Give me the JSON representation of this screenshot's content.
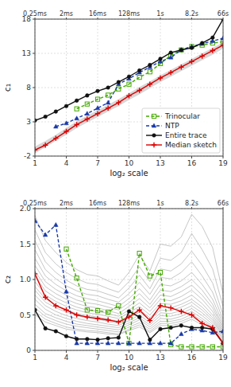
{
  "chart_data": [
    {
      "type": "line",
      "xlabel": "log₂ scale",
      "ylabel": "c₁",
      "x": [
        1,
        2,
        3,
        4,
        5,
        6,
        7,
        8,
        9,
        10,
        11,
        12,
        13,
        14,
        15,
        16,
        17,
        18,
        19
      ],
      "xlim": [
        1,
        19
      ],
      "xticks": [
        1,
        4,
        7,
        10,
        13,
        16,
        19
      ],
      "x2lim": [
        1,
        19
      ],
      "x2ticks": [
        {
          "value": 1,
          "label": "0.25ms"
        },
        {
          "value": 4,
          "label": "2ms"
        },
        {
          "value": 7,
          "label": "16ms"
        },
        {
          "value": 10,
          "label": "128ms"
        },
        {
          "value": 13,
          "label": "1s"
        },
        {
          "value": 16,
          "label": "8.2s"
        },
        {
          "value": 19,
          "label": "66s"
        }
      ],
      "ylim": [
        -2,
        18
      ],
      "yticks": [
        -2,
        3,
        8,
        13,
        18
      ],
      "grid": true,
      "legend": "lower right",
      "series": [
        {
          "type": "area",
          "color": "#d0d0d0",
          "values": [
            -0.6,
            0.2,
            1.1,
            2.1,
            3.1,
            3.9,
            4.7,
            5.5,
            6.3,
            7.2,
            8.1,
            8.9,
            9.8,
            10.6,
            11.4,
            12.2,
            13.0,
            13.8,
            14.6
          ],
          "lower": [
            -1.6,
            -0.7,
            0.2,
            1.1,
            2.1,
            2.9,
            3.7,
            4.5,
            5.3,
            6.2,
            7.0,
            7.9,
            8.8,
            9.6,
            10.4,
            11.2,
            12.0,
            12.8,
            13.7
          ]
        },
        {
          "name": "Trinocular",
          "color": "#44aa00",
          "line_style": "dashed",
          "marker": "open-square",
          "values": [
            null,
            null,
            null,
            null,
            4.9,
            5.6,
            6.3,
            6.9,
            7.8,
            8.5,
            9.5,
            10.3,
            11.5,
            12.7,
            13.5,
            14.0,
            14.2,
            14.5,
            14.7
          ]
        },
        {
          "name": "NTP",
          "color": "#1a3aaa",
          "line_style": "dashed",
          "marker": "triangle",
          "values": [
            null,
            null,
            2.3,
            2.8,
            3.5,
            4.2,
            5.0,
            5.8,
            8.5,
            9.3,
            10.2,
            11.0,
            11.8,
            12.4,
            13.5,
            14.0,
            14.4,
            14.8,
            15.2
          ]
        },
        {
          "name": "Entire trace",
          "color": "#111111",
          "line_style": "solid",
          "marker": "circle",
          "values": [
            3.2,
            3.75,
            4.5,
            5.3,
            6.1,
            6.85,
            7.5,
            8.0,
            8.8,
            9.6,
            10.5,
            11.3,
            12.2,
            13.1,
            13.5,
            13.8,
            14.5,
            15.3,
            18.0
          ]
        },
        {
          "name": "Median sketch",
          "color": "#dd0000",
          "line_style": "solid",
          "marker": "plus",
          "values": [
            -1.1,
            -0.4,
            0.6,
            1.6,
            2.6,
            3.4,
            4.2,
            5.0,
            5.8,
            6.8,
            7.6,
            8.5,
            9.4,
            10.2,
            11.0,
            11.8,
            12.6,
            13.4,
            14.2
          ]
        }
      ]
    },
    {
      "type": "line",
      "xlabel": "log₂ scale",
      "ylabel": "c₂",
      "x": [
        1,
        2,
        3,
        4,
        5,
        6,
        7,
        8,
        9,
        10,
        11,
        12,
        13,
        14,
        15,
        16,
        17,
        18,
        19
      ],
      "xlim": [
        1,
        19
      ],
      "xticks": [
        1,
        4,
        7,
        10,
        13,
        16,
        19
      ],
      "x2lim": [
        1,
        19
      ],
      "x2ticks": [
        {
          "value": 1,
          "label": "0.25ms"
        },
        {
          "value": 4,
          "label": "2ms"
        },
        {
          "value": 7,
          "label": "16ms"
        },
        {
          "value": 10,
          "label": "128ms"
        },
        {
          "value": 13,
          "label": "1s"
        },
        {
          "value": 16,
          "label": "8.2s"
        },
        {
          "value": 19,
          "label": "66s"
        }
      ],
      "ylim": [
        0,
        2
      ],
      "yticks": [
        0,
        0.5,
        {
          "value": 1.0,
          "label": "1.0"
        },
        1.5,
        {
          "value": 2.0,
          "label": "2.0"
        }
      ],
      "grid": true,
      "series": [
        {
          "color": "#b8b8b8",
          "line_style": "solid",
          "values": [
            0.5,
            0.4,
            0.35,
            0.3,
            0.28,
            0.26,
            0.25,
            0.23,
            0.22,
            0.28,
            0.33,
            0.25,
            0.35,
            0.35,
            0.38,
            0.44,
            0.36,
            0.27,
            0.13
          ]
        },
        {
          "color": "#b8b8b8",
          "line_style": "solid",
          "values": [
            0.55,
            0.44,
            0.38,
            0.33,
            0.3,
            0.28,
            0.27,
            0.25,
            0.23,
            0.3,
            0.36,
            0.27,
            0.38,
            0.38,
            0.41,
            0.47,
            0.39,
            0.29,
            0.14
          ]
        },
        {
          "color": "#b8b8b8",
          "line_style": "solid",
          "values": [
            0.6,
            0.48,
            0.42,
            0.37,
            0.34,
            0.32,
            0.3,
            0.28,
            0.26,
            0.33,
            0.39,
            0.3,
            0.41,
            0.41,
            0.44,
            0.51,
            0.42,
            0.32,
            0.16
          ]
        },
        {
          "color": "#b8b8b8",
          "line_style": "solid",
          "values": [
            0.65,
            0.52,
            0.46,
            0.41,
            0.37,
            0.35,
            0.33,
            0.31,
            0.29,
            0.36,
            0.43,
            0.33,
            0.45,
            0.44,
            0.48,
            0.55,
            0.45,
            0.34,
            0.17
          ]
        },
        {
          "color": "#b8b8b8",
          "line_style": "solid",
          "values": [
            0.72,
            0.58,
            0.5,
            0.45,
            0.41,
            0.38,
            0.36,
            0.34,
            0.32,
            0.39,
            0.46,
            0.36,
            0.49,
            0.48,
            0.52,
            0.59,
            0.49,
            0.37,
            0.19
          ]
        },
        {
          "color": "#b8b8b8",
          "line_style": "solid",
          "values": [
            0.78,
            0.63,
            0.55,
            0.49,
            0.45,
            0.42,
            0.4,
            0.37,
            0.35,
            0.42,
            0.5,
            0.39,
            0.53,
            0.52,
            0.56,
            0.63,
            0.53,
            0.4,
            0.21
          ]
        },
        {
          "color": "#b8b8b8",
          "line_style": "solid",
          "values": [
            0.85,
            0.68,
            0.6,
            0.54,
            0.49,
            0.46,
            0.44,
            0.41,
            0.38,
            0.46,
            0.54,
            0.43,
            0.57,
            0.56,
            0.61,
            0.68,
            0.57,
            0.43,
            0.22
          ]
        },
        {
          "color": "#b8b8b8",
          "line_style": "solid",
          "values": [
            0.9,
            0.73,
            0.64,
            0.57,
            0.52,
            0.49,
            0.47,
            0.44,
            0.41,
            0.49,
            0.57,
            0.46,
            0.61,
            0.6,
            0.65,
            0.72,
            0.61,
            0.46,
            0.24
          ]
        },
        {
          "color": "#b8b8b8",
          "line_style": "solid",
          "values": [
            0.97,
            0.78,
            0.69,
            0.62,
            0.57,
            0.53,
            0.51,
            0.48,
            0.45,
            0.53,
            0.62,
            0.5,
            0.66,
            0.65,
            0.7,
            0.78,
            0.66,
            0.5,
            0.26
          ]
        },
        {
          "color": "#b8b8b8",
          "line_style": "solid",
          "values": [
            1.05,
            0.84,
            0.74,
            0.67,
            0.61,
            0.57,
            0.55,
            0.52,
            0.48,
            0.57,
            0.67,
            0.55,
            0.72,
            0.7,
            0.76,
            0.85,
            0.72,
            0.55,
            0.28
          ]
        },
        {
          "color": "#b8b8b8",
          "line_style": "solid",
          "values": [
            1.12,
            0.9,
            0.8,
            0.72,
            0.66,
            0.62,
            0.6,
            0.56,
            0.52,
            0.62,
            0.73,
            0.6,
            0.78,
            0.76,
            0.83,
            0.92,
            0.78,
            0.6,
            0.31
          ]
        },
        {
          "color": "#b8b8b8",
          "line_style": "solid",
          "values": [
            1.2,
            0.97,
            0.86,
            0.78,
            0.71,
            0.67,
            0.65,
            0.61,
            0.57,
            0.67,
            0.8,
            0.65,
            0.85,
            0.83,
            0.9,
            1.0,
            0.85,
            0.65,
            0.34
          ]
        },
        {
          "color": "#b8b8b8",
          "line_style": "solid",
          "values": [
            1.3,
            1.05,
            0.93,
            0.84,
            0.77,
            0.73,
            0.7,
            0.66,
            0.62,
            0.73,
            0.87,
            0.71,
            0.93,
            0.91,
            0.98,
            1.1,
            0.93,
            0.72,
            0.38
          ]
        },
        {
          "color": "#b8b8b8",
          "line_style": "solid",
          "values": [
            1.42,
            1.14,
            1.01,
            0.91,
            0.84,
            0.79,
            0.77,
            0.72,
            0.68,
            0.8,
            0.96,
            0.79,
            1.03,
            1.01,
            1.1,
            1.25,
            1.05,
            0.82,
            0.43
          ]
        },
        {
          "color": "#b8b8b8",
          "line_style": "solid",
          "values": [
            1.55,
            1.25,
            1.1,
            0.99,
            0.91,
            0.86,
            0.84,
            0.79,
            0.74,
            0.88,
            1.06,
            0.87,
            1.15,
            1.12,
            1.22,
            1.4,
            1.2,
            0.95,
            0.5
          ]
        },
        {
          "color": "#b8b8b8",
          "line_style": "solid",
          "values": [
            1.7,
            1.38,
            1.22,
            1.1,
            1.01,
            0.95,
            0.93,
            0.87,
            0.82,
            0.97,
            1.18,
            0.97,
            1.3,
            1.27,
            1.38,
            1.65,
            1.42,
            1.15,
            0.62
          ]
        },
        {
          "color": "#b8b8b8",
          "line_style": "solid",
          "values": [
            1.9,
            1.55,
            1.38,
            1.24,
            1.14,
            1.07,
            1.05,
            0.98,
            0.92,
            1.1,
            1.35,
            1.12,
            1.5,
            1.47,
            1.6,
            1.92,
            1.75,
            1.45,
            0.8
          ]
        },
        {
          "color": "#44aa00",
          "line_style": "dashed",
          "marker": "open-square",
          "values": [
            null,
            null,
            null,
            1.43,
            1.02,
            0.57,
            0.56,
            0.54,
            0.63,
            0.1,
            1.37,
            1.05,
            1.1,
            0.08,
            0.05,
            0.05,
            0.05,
            0.05,
            0.05
          ]
        },
        {
          "color": "#1a3aaa",
          "line_style": "dashed",
          "marker": "triangle",
          "values": [
            1.83,
            1.63,
            1.77,
            0.83,
            0.1,
            0.1,
            0.1,
            0.1,
            0.1,
            0.1,
            0.1,
            0.1,
            0.1,
            0.1,
            0.23,
            0.3,
            0.28,
            0.25,
            0.27
          ]
        },
        {
          "color": "#111111",
          "line_style": "solid",
          "marker": "circle",
          "values": [
            0.57,
            0.31,
            0.27,
            0.2,
            0.16,
            0.16,
            0.15,
            0.17,
            0.18,
            0.55,
            0.47,
            0.15,
            0.3,
            0.32,
            0.35,
            0.32,
            0.32,
            0.3,
            0.1
          ]
        },
        {
          "color": "#dd0000",
          "line_style": "solid",
          "marker": "plus",
          "values": [
            1.08,
            0.75,
            0.63,
            0.57,
            0.5,
            0.47,
            0.45,
            0.43,
            0.4,
            0.47,
            0.57,
            0.42,
            0.63,
            0.6,
            0.55,
            0.5,
            0.38,
            0.32,
            0.1
          ]
        }
      ]
    }
  ]
}
